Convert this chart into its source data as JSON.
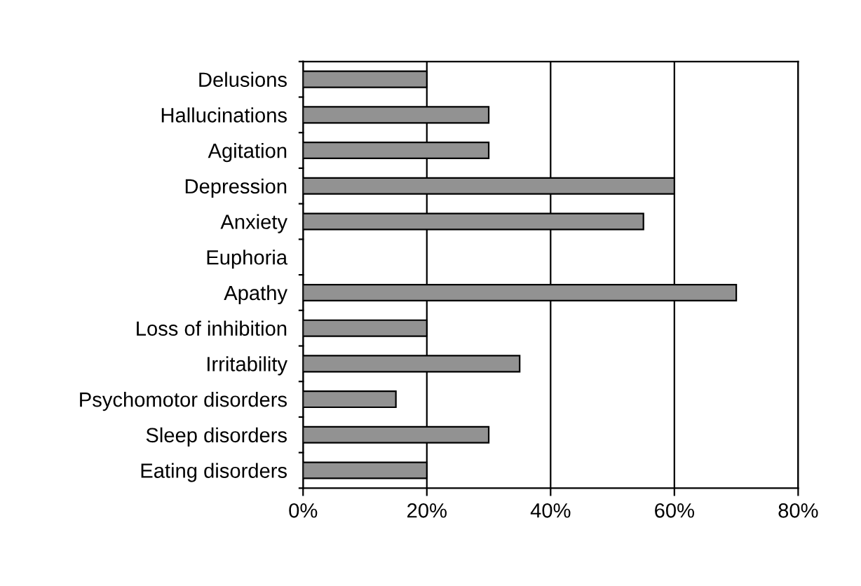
{
  "chart_data": {
    "type": "bar",
    "orientation": "horizontal",
    "categories": [
      "Delusions",
      "Hallucinations",
      "Agitation",
      "Depression",
      "Anxiety",
      "Euphoria",
      "Apathy",
      "Loss of inhibition",
      "Irritability",
      "Psychomotor disorders",
      "Sleep disorders",
      "Eating disorders"
    ],
    "values": [
      20,
      30,
      30,
      60,
      55,
      0,
      70,
      20,
      35,
      15,
      30,
      20
    ],
    "color": "#929292",
    "xlim": [
      0,
      80
    ],
    "xticks": [
      {
        "value": 0,
        "label": "0%"
      },
      {
        "value": 20,
        "label": "20%"
      },
      {
        "value": 40,
        "label": "40%"
      },
      {
        "value": 60,
        "label": "60%"
      },
      {
        "value": 80,
        "label": "80%"
      }
    ],
    "grid": "x",
    "legend": false
  }
}
